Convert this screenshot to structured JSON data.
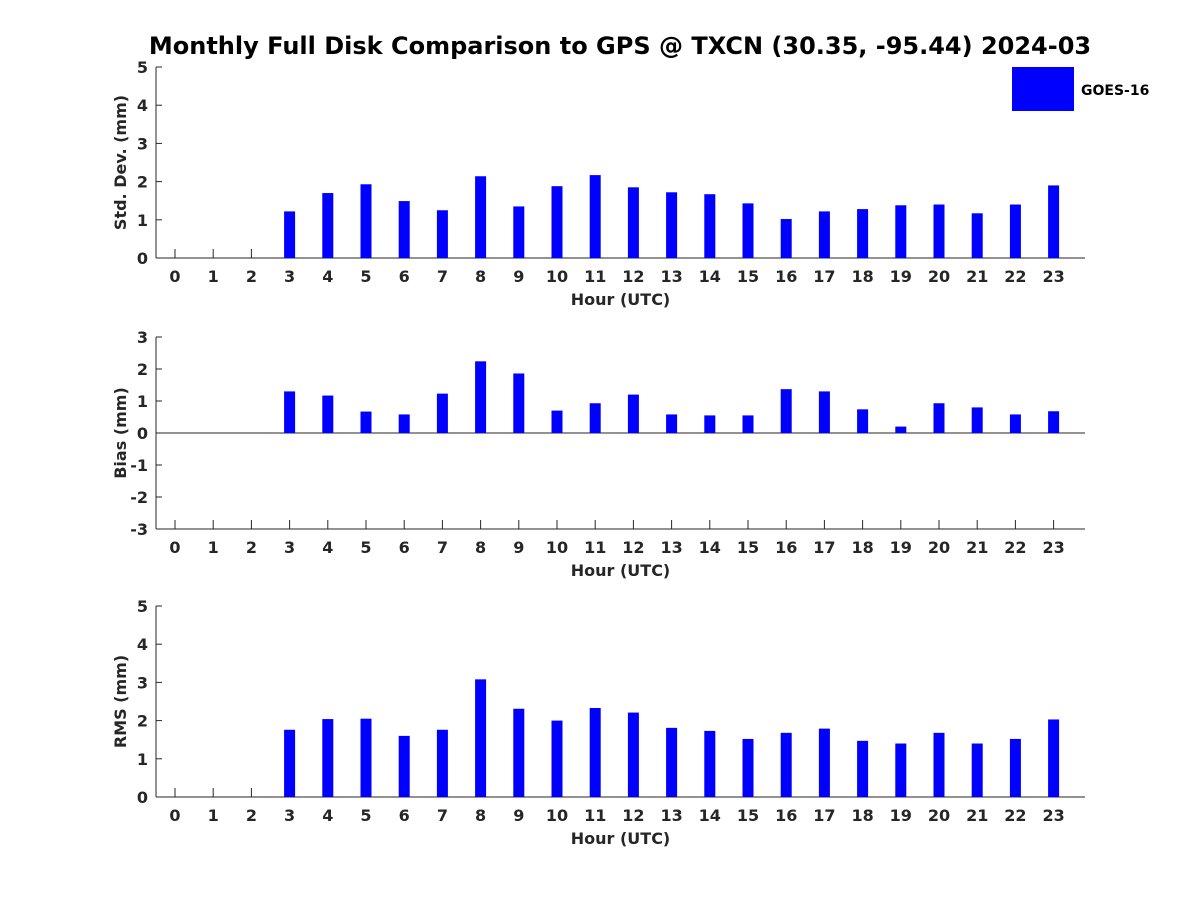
{
  "chart_data": {
    "title": "Monthly Full Disk Comparison to GPS @ TXCN (30.35, -95.44) 2024-03",
    "legend": {
      "label": "GOES-16",
      "color": "#0000ff",
      "position": "top-right"
    },
    "categories": [
      "0",
      "1",
      "2",
      "3",
      "4",
      "5",
      "6",
      "7",
      "8",
      "9",
      "10",
      "11",
      "12",
      "13",
      "14",
      "15",
      "16",
      "17",
      "18",
      "19",
      "20",
      "21",
      "22",
      "23"
    ],
    "panels": [
      {
        "type": "bar",
        "name": "std-dev",
        "xlabel": "Hour (UTC)",
        "ylabel": "Std. Dev. (mm)",
        "ylim": [
          0,
          5
        ],
        "yticks": [
          "0",
          "1",
          "2",
          "3",
          "4",
          "5"
        ],
        "values": [
          null,
          null,
          null,
          1.22,
          1.7,
          1.93,
          1.49,
          1.25,
          2.14,
          1.35,
          1.88,
          2.17,
          1.85,
          1.72,
          1.67,
          1.43,
          1.02,
          1.22,
          1.28,
          1.38,
          1.4,
          1.17,
          1.4,
          1.9
        ]
      },
      {
        "type": "bar",
        "name": "bias",
        "xlabel": "Hour (UTC)",
        "ylabel": "Bias (mm)",
        "ylim": [
          -3,
          3
        ],
        "yticks": [
          "-3",
          "-2",
          "-1",
          "0",
          "1",
          "2",
          "3"
        ],
        "values": [
          null,
          null,
          null,
          1.3,
          1.17,
          0.67,
          0.58,
          1.23,
          2.24,
          1.86,
          0.7,
          0.93,
          1.2,
          0.58,
          0.55,
          0.55,
          1.37,
          1.3,
          0.74,
          0.2,
          0.93,
          0.8,
          0.58,
          0.68
        ]
      },
      {
        "type": "bar",
        "name": "rms",
        "xlabel": "Hour (UTC)",
        "ylabel": "RMS (mm)",
        "ylim": [
          0,
          5
        ],
        "yticks": [
          "0",
          "1",
          "2",
          "3",
          "4",
          "5"
        ],
        "values": [
          null,
          null,
          null,
          1.76,
          2.04,
          2.05,
          1.6,
          1.76,
          3.08,
          2.31,
          2.0,
          2.33,
          2.21,
          1.81,
          1.73,
          1.52,
          1.68,
          1.79,
          1.47,
          1.4,
          1.68,
          1.4,
          1.52,
          2.03
        ]
      }
    ]
  }
}
